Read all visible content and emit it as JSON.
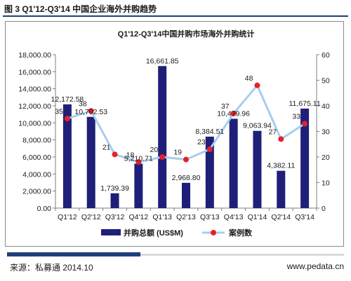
{
  "figure_title": "图 3 Q1'12-Q3'14 中国企业海外并购趋势",
  "source_label": "来源：私募通 2014.10",
  "website": "www.pedata.cn",
  "chart_data": {
    "type": "bar",
    "title": "Q1'12-Q3'14中国并购市场海外并购统计",
    "categories": [
      "Q1'12",
      "Q2'12",
      "Q3'12",
      "Q4'12",
      "Q1'13",
      "Q2'13",
      "Q3'13",
      "Q4'13",
      "Q1'14",
      "Q2'14",
      "Q3'14"
    ],
    "series": [
      {
        "name": "并购总额 (US$M)",
        "type": "bar",
        "axis": "left",
        "color": "#1f1f7a",
        "values": [
          12172.58,
          10702.53,
          1739.39,
          5210.71,
          16661.85,
          2968.8,
          8384.51,
          10479.96,
          9063.94,
          4382.11,
          11675.11
        ],
        "labels": [
          "12,172.58",
          "10,702.53",
          "1,739.39",
          "5,210.71",
          "16,661.85",
          "2,968.80",
          "8,384.51",
          "10,479.96",
          "9,063.94",
          "4,382.11",
          "11,675.11"
        ]
      },
      {
        "name": "案例数",
        "type": "line",
        "axis": "right",
        "color": "#a7cdf0",
        "marker_color": "#e8202a",
        "values": [
          35,
          38,
          21,
          18,
          20,
          19,
          23,
          37,
          48,
          27,
          33
        ],
        "labels": [
          "35",
          "38",
          "21",
          "18",
          "20",
          "19",
          "23",
          "37",
          "48",
          "27",
          "33"
        ]
      }
    ],
    "y_left": {
      "min": 0,
      "max": 18000,
      "step": 2000,
      "tick_labels": [
        "0.00",
        "2,000.00",
        "4,000.00",
        "6,000.00",
        "8,000.00",
        "10,000.00",
        "12,000.00",
        "14,000.00",
        "16,000.00",
        "18,000.00"
      ]
    },
    "y_right": {
      "min": 0,
      "max": 60,
      "step": 10,
      "tick_labels": [
        "0",
        "10",
        "20",
        "30",
        "40",
        "50",
        "60"
      ]
    },
    "grid": false,
    "legend_position": "bottom"
  }
}
